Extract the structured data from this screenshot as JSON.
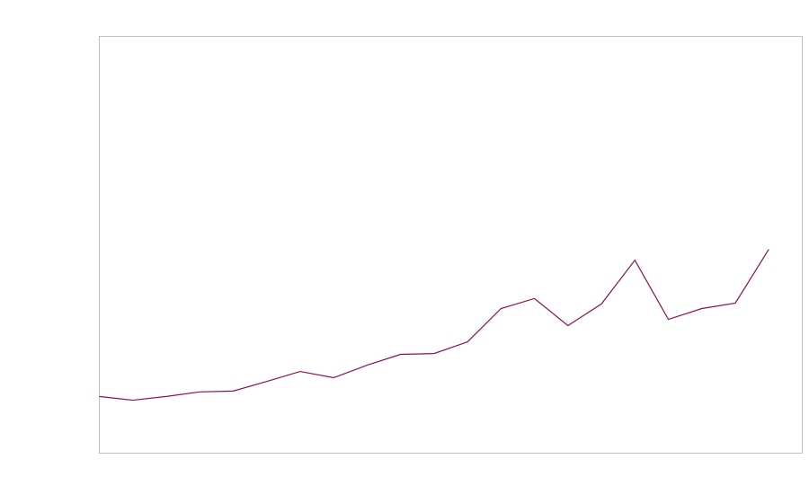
{
  "chart_data": {
    "type": "line",
    "title": "",
    "xlabel": "",
    "ylabel": "",
    "x": [
      0,
      1,
      2,
      3,
      4,
      5,
      6,
      7,
      8,
      9,
      10,
      11,
      12,
      13,
      14,
      15,
      16,
      17,
      18,
      19,
      20
    ],
    "series": [
      {
        "values": [
          13.6,
          12.7,
          13.6,
          14.7,
          14.9,
          17.2,
          19.6,
          18.1,
          21.1,
          23.7,
          23.9,
          26.7,
          34.7,
          37.1,
          30.6,
          35.8,
          46.3,
          32.1,
          34.7,
          36.0,
          48.9
        ],
        "color": "#8c0f55"
      }
    ],
    "xlim": [
      0,
      21
    ],
    "ylim": [
      0,
      100
    ],
    "grid": false,
    "legend": "none",
    "frame_color": "#c0c0c0"
  }
}
